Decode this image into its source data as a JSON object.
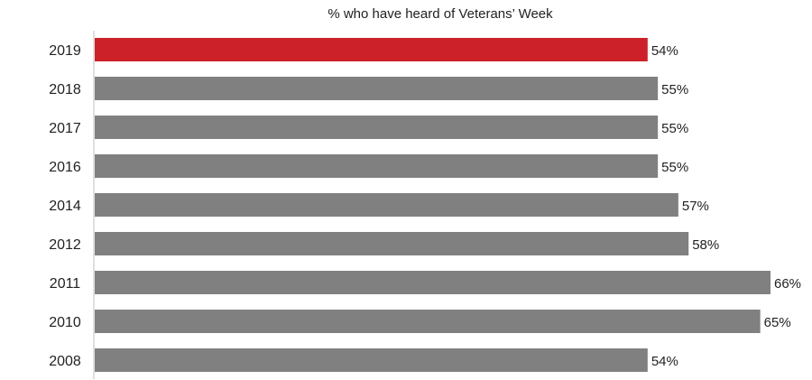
{
  "chart_data": {
    "type": "bar",
    "orientation": "horizontal",
    "title": "% who have heard of Veterans’ Week",
    "categories": [
      "2019",
      "2018",
      "2017",
      "2016",
      "2014",
      "2012",
      "2011",
      "2010",
      "2008"
    ],
    "values": [
      54,
      55,
      55,
      55,
      57,
      58,
      66,
      65,
      54
    ],
    "data_labels": [
      "54%",
      "55%",
      "55%",
      "55%",
      "57%",
      "58%",
      "66%",
      "65%",
      "54%"
    ],
    "value_unit": "%",
    "xlim": [
      0,
      66
    ],
    "xlabel": "",
    "ylabel": "",
    "grid": false,
    "legend": "none",
    "colors": {
      "highlight": "#cc2128",
      "default": "#808080",
      "axis": "#bfbfbf",
      "text": "#222222"
    },
    "highlight_category": "2019"
  }
}
